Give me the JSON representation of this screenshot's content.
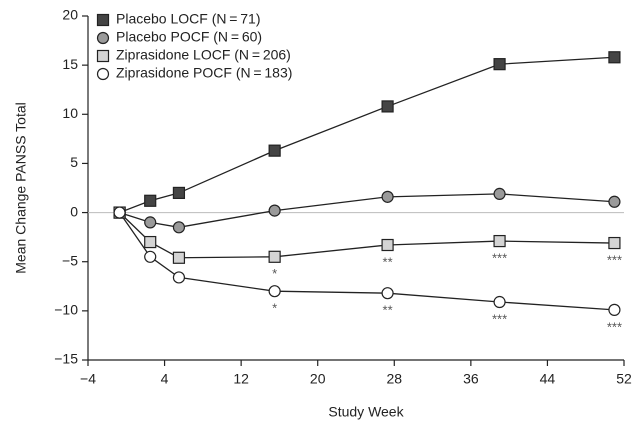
{
  "chart_data": {
    "type": "line",
    "x_label": "Study Week",
    "y_label": "Mean Change PANSS Total",
    "x": [
      -0.7,
      2.5,
      5.5,
      15.5,
      27.3,
      39,
      51
    ],
    "series": [
      {
        "name": "Placebo LOCF (N = 71)",
        "marker": "square",
        "color": "#444444",
        "values": [
          0,
          1.2,
          2.0,
          6.3,
          10.8,
          15.1,
          15.8
        ]
      },
      {
        "name": "Placebo POCF (N = 60)",
        "marker": "circle",
        "color": "#9a9a9a",
        "values": [
          0,
          -1.0,
          -1.5,
          0.2,
          1.6,
          1.9,
          1.1
        ]
      },
      {
        "name": "Ziprasidone LOCF (N = 206)",
        "marker": "square",
        "color": "#d4d4d4",
        "values": [
          0,
          -3.0,
          -4.6,
          -4.5,
          -3.3,
          -2.9,
          -3.1
        ],
        "significance": [
          null,
          null,
          null,
          "*",
          "**",
          "***",
          "***"
        ]
      },
      {
        "name": "Ziprasidone POCF (N = 183)",
        "marker": "circle",
        "color": "#ffffff",
        "values": [
          0,
          -4.5,
          -6.6,
          -8.0,
          -8.2,
          -9.1,
          -9.9
        ],
        "significance": [
          null,
          null,
          null,
          "*",
          "**",
          "***",
          "***"
        ]
      }
    ],
    "line_color": "#222222",
    "xlim": [
      -4,
      52
    ],
    "xticks": [
      {
        "value": -4,
        "label": "−4"
      },
      4,
      12,
      20,
      28,
      36,
      44,
      52
    ],
    "ylim": [
      -15,
      20
    ],
    "yticks": [
      {
        "value": -15,
        "label": "−15"
      },
      {
        "value": -10,
        "label": "−10"
      },
      {
        "value": -5,
        "label": "−5"
      },
      0,
      5,
      10,
      15,
      20
    ],
    "zero_line": true,
    "legend": "top-left"
  }
}
